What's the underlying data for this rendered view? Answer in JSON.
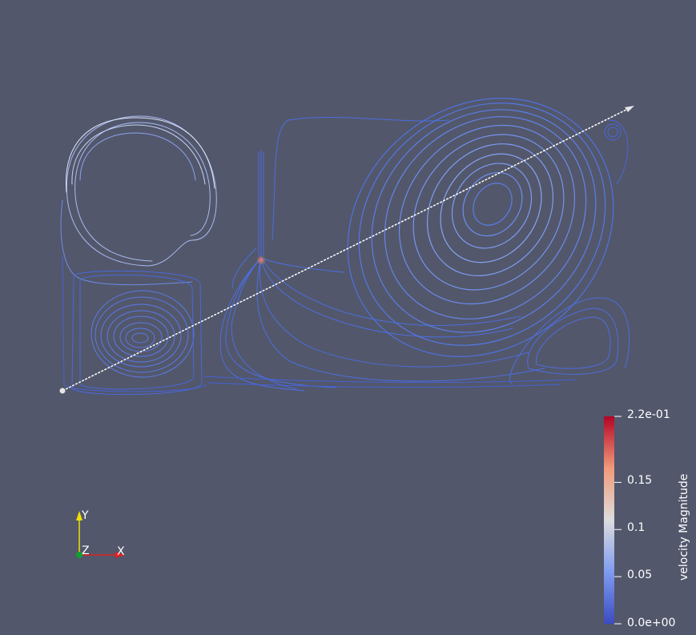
{
  "scene": {
    "background_color": "#52576b",
    "streamline_color": "#4c6ee0",
    "fast_color": "#d94a3a",
    "line_widget_color": "#ffffff"
  },
  "colorbar": {
    "title": "velocity Magnitude",
    "max_label": "2.2e-01",
    "min_label": "0.0e+00",
    "ticks": [
      {
        "label": "0.15",
        "value": 0.15
      },
      {
        "label": "0.1",
        "value": 0.1
      },
      {
        "label": "0.05",
        "value": 0.05
      }
    ],
    "range": [
      0.0,
      0.22
    ],
    "colormap": [
      "#3b4cc0",
      "#7f9bf0",
      "#dddddd",
      "#f19a7a",
      "#b40426"
    ]
  },
  "orientation_axes": {
    "y_label": "Y",
    "z_label": "Z",
    "x_label": "X",
    "y_color": "#f0e000",
    "x_color": "#e02020",
    "z_color": "#10a030"
  }
}
